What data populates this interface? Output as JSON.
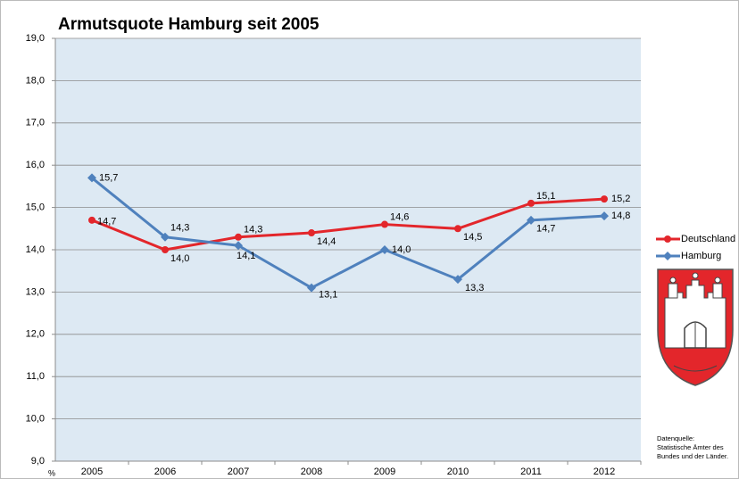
{
  "chart_data": {
    "type": "line",
    "title": "Armutsquote Hamburg seit 2005",
    "y_label": "%",
    "categories": [
      "2005",
      "2006",
      "2007",
      "2008",
      "2009",
      "2010",
      "2011",
      "2012"
    ],
    "series": [
      {
        "name": "Deutschland",
        "color": "#e3262b",
        "marker": "circle",
        "values": [
          14.7,
          14.0,
          14.3,
          14.4,
          14.6,
          14.5,
          15.1,
          15.2
        ],
        "value_labels": [
          "14,7",
          "14,0",
          "14,3",
          "14,4",
          "14,6",
          "14,5",
          "15,1",
          "15,2"
        ]
      },
      {
        "name": "Hamburg",
        "color": "#4f81bd",
        "marker": "diamond",
        "values": [
          15.7,
          14.3,
          14.1,
          13.1,
          14.0,
          13.3,
          14.7,
          14.8
        ],
        "value_labels": [
          "15,7",
          "14,3",
          "14,1",
          "13,1",
          "14,0",
          "13,3",
          "14,7",
          "14,8"
        ]
      }
    ],
    "ylim": [
      9,
      19
    ],
    "yticks": [
      {
        "value": 9,
        "label": "9,0"
      },
      {
        "value": 10,
        "label": "10,0"
      },
      {
        "value": 11,
        "label": "11,0"
      },
      {
        "value": 12,
        "label": "12,0"
      },
      {
        "value": 13,
        "label": "13,0"
      },
      {
        "value": 14,
        "label": "14,0"
      },
      {
        "value": 15,
        "label": "15,0"
      },
      {
        "value": 16,
        "label": "16,0"
      },
      {
        "value": 17,
        "label": "17,0"
      },
      {
        "value": 18,
        "label": "18,0"
      },
      {
        "value": 19,
        "label": "19,0"
      }
    ],
    "grid": true,
    "legend": "right",
    "source": [
      "Datenquelle:",
      "Statistische Ämter des",
      "Bundes und der Länder."
    ]
  }
}
